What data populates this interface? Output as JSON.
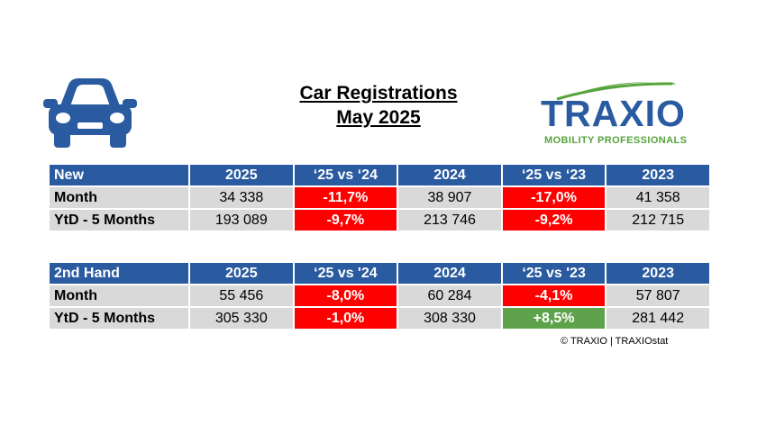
{
  "title": {
    "line1": "Car Registrations",
    "line2": "May 2025"
  },
  "icons": {
    "car": "car-icon"
  },
  "logo": {
    "word": "TRAXIO",
    "tagline": "MOBILITY PROFESSIONALS",
    "colors": {
      "primary": "#2a5ba0",
      "accent": "#56a43c"
    }
  },
  "colors": {
    "header": "#2a5ba0",
    "cell": "#d9d9d9",
    "negative": "#ff0000",
    "positive": "#5ea24b"
  },
  "tables": {
    "new": {
      "headers": [
        "New",
        "2025",
        "‘25 vs ‘24",
        "2024",
        "‘25 vs ‘23",
        "2023"
      ],
      "rows": [
        [
          "Month",
          "34 338",
          "-11,7%",
          "38 907",
          "-17,0%",
          "41 358"
        ],
        [
          "YtD - 5 Months",
          "193 089",
          "-9,7%",
          "213 746",
          "-9,2%",
          "212 715"
        ]
      ]
    },
    "used": {
      "headers": [
        "2nd Hand",
        "2025",
        "‘25 vs '24",
        "2024",
        "‘25 vs '23",
        "2023"
      ],
      "rows": [
        [
          "Month",
          "55 456",
          "-8,0%",
          "60 284",
          "-4,1%",
          "57 807"
        ],
        [
          "YtD - 5 Months",
          "305 330",
          "-1,0%",
          "308 330",
          "+8,5%",
          "281 442"
        ]
      ]
    }
  },
  "copyright": "© TRAXIO | TRAXIOstat"
}
